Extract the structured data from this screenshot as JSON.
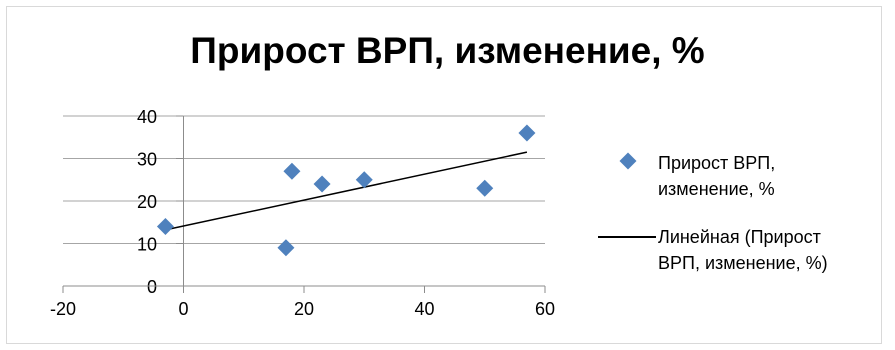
{
  "chart_data": {
    "type": "scatter",
    "title": "Прирост ВРП, изменение, %",
    "xlabel": "",
    "ylabel": "",
    "xlim": [
      -20,
      60
    ],
    "ylim": [
      0,
      40
    ],
    "x_ticks": [
      "-20",
      "0",
      "20",
      "40",
      "60"
    ],
    "y_ticks": [
      "0",
      "10",
      "20",
      "30",
      "40"
    ],
    "grid": "horizontal",
    "legend_position": "right",
    "series": [
      {
        "name": "Прирост ВРП, изменение, %",
        "marker": "diamond",
        "color": "#4f81bd",
        "points": [
          {
            "x": -3,
            "y": 14
          },
          {
            "x": 17,
            "y": 9
          },
          {
            "x": 18,
            "y": 27
          },
          {
            "x": 23,
            "y": 24
          },
          {
            "x": 30,
            "y": 25
          },
          {
            "x": 50,
            "y": 23
          },
          {
            "x": 57,
            "y": 36
          }
        ]
      }
    ],
    "trendline": {
      "name": "Линейная (Прирост ВРП, изменение, %)",
      "type": "linear",
      "color": "#000000",
      "start": {
        "x": -3,
        "y": 13.2
      },
      "end": {
        "x": 57,
        "y": 31.5
      }
    }
  },
  "legend": {
    "series_line1": "Прирост ВРП,",
    "series_line2": "изменение, %",
    "trend_line1": "Линейная (Прирост",
    "trend_line2": "ВРП, изменение, %)"
  }
}
